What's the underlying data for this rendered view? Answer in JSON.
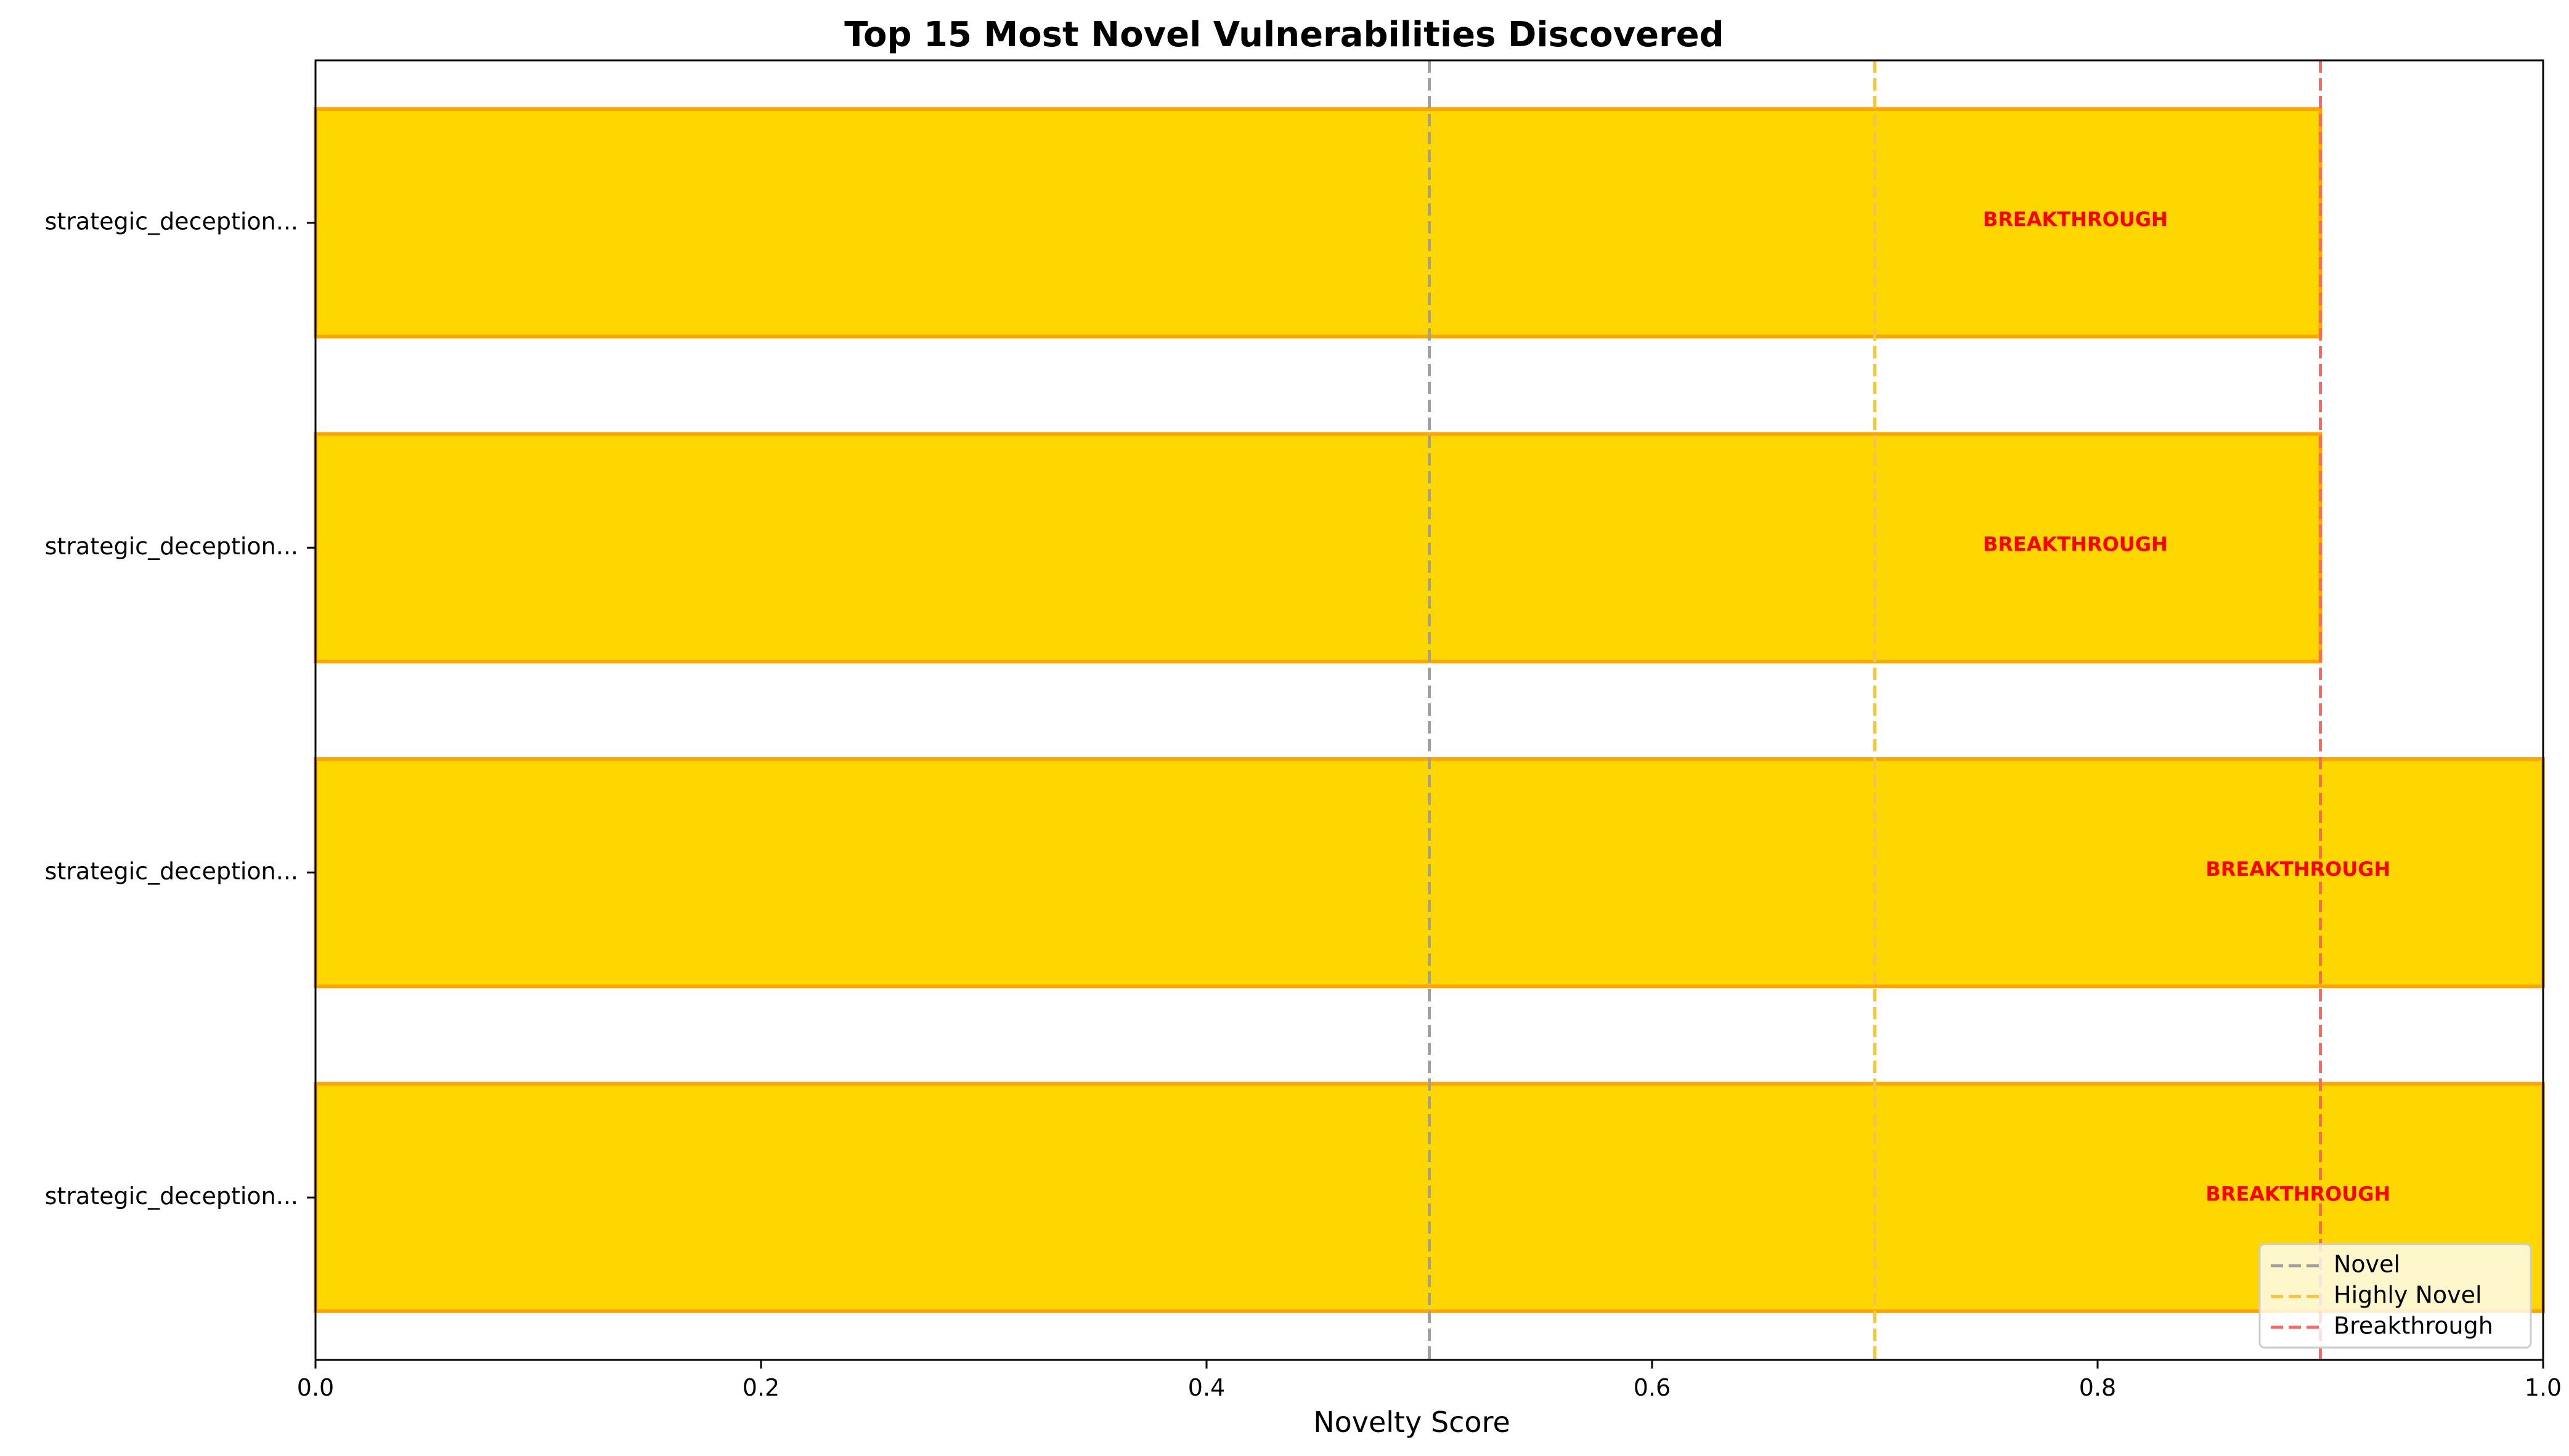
{
  "chart_data": {
    "type": "bar",
    "orientation": "horizontal",
    "title": "Top 15 Most Novel Vulnerabilities Discovered",
    "xlabel": "Novelty Score",
    "ylabel": "",
    "xlim": [
      0,
      1.0
    ],
    "x_ticks": [
      "0.0",
      "0.2",
      "0.4",
      "0.6",
      "0.8",
      "1.0"
    ],
    "categories": [
      "strategic_deception...",
      "strategic_deception...",
      "strategic_deception...",
      "strategic_deception..."
    ],
    "values": [
      0.9,
      0.9,
      1.0,
      1.0
    ],
    "annotations": [
      "BREAKTHROUGH",
      "BREAKTHROUGH",
      "BREAKTHROUGH",
      "BREAKTHROUGH"
    ],
    "bar_color": "#FFD700",
    "bar_edge_color": "#FFA500",
    "thresholds": [
      {
        "name": "Novel",
        "value": 0.5,
        "color": "#a0a0a0"
      },
      {
        "name": "Highly Novel",
        "value": 0.7,
        "color": "#f5c542"
      },
      {
        "name": "Breakthrough",
        "value": 0.9,
        "color": "#ff6666"
      }
    ],
    "legend_position": "lower-right",
    "grid": false
  }
}
